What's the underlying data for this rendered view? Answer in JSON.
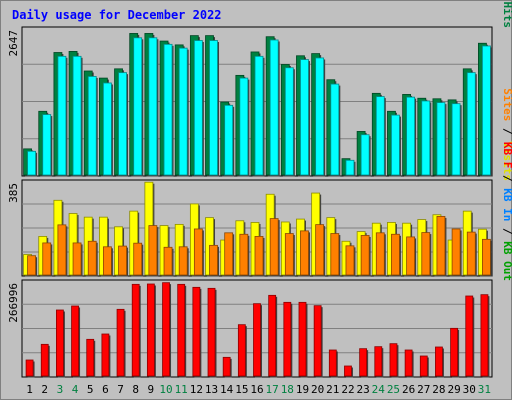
{
  "chart_data": {
    "title": "Daily usage for December 2022",
    "type": "bar",
    "x": [
      "1",
      "2",
      "3",
      "4",
      "5",
      "6",
      "7",
      "8",
      "9",
      "10",
      "11",
      "12",
      "13",
      "14",
      "15",
      "16",
      "17",
      "18",
      "19",
      "20",
      "21",
      "22",
      "23",
      "24",
      "25",
      "26",
      "27",
      "28",
      "29",
      "30",
      "31"
    ],
    "weekend_days": [
      "3",
      "4",
      "10",
      "11",
      "17",
      "18",
      "24",
      "25",
      "31"
    ],
    "panels": [
      {
        "id": "top",
        "ymax_label": "2647",
        "ylim": [
          0,
          2700
        ],
        "legend": [
          "Pages",
          "Files",
          "Hits"
        ],
        "series": [
          {
            "name": "Hits",
            "color": "#008040",
            "values": [
              480,
              1170,
              2250,
              2270,
              1910,
              1780,
              1950,
              2600,
              2600,
              2460,
              2390,
              2560,
              2560,
              1340,
              1830,
              2260,
              2540,
              2030,
              2190,
              2230,
              1750,
              300,
              800,
              1500,
              1170,
              1480,
              1410,
              1400,
              1380,
              1950,
              2420
            ]
          },
          {
            "name": "Files",
            "color": "#00ffff",
            "values": [
              435,
              1110,
              2180,
              2180,
              1810,
              1690,
              1880,
              2520,
              2520,
              2400,
              2330,
              2470,
              2470,
              1280,
              1780,
              2180,
              2480,
              1970,
              2120,
              2150,
              1670,
              270,
              740,
              1440,
              1100,
              1430,
              1360,
              1330,
              1310,
              1880,
              2370
            ]
          },
          {
            "name": "Pages",
            "color": "#00a0ff",
            "values": [
              0,
              0,
              0,
              0,
              0,
              0,
              0,
              0,
              0,
              0,
              0,
              0,
              0,
              0,
              0,
              0,
              0,
              0,
              0,
              0,
              0,
              0,
              0,
              0,
              0,
              0,
              0,
              0,
              0,
              0,
              0
            ]
          }
        ]
      },
      {
        "id": "middle",
        "ymax_label": "385",
        "ylim": [
          0,
          390
        ],
        "legend": [
          "Sites",
          "Visits"
        ],
        "series": [
          {
            "name": "Visits",
            "color": "#ffff00",
            "values": [
              85,
              160,
              310,
              255,
              240,
              240,
              200,
              265,
              385,
              205,
              210,
              295,
              238,
              145,
              225,
              218,
              335,
              220,
              232,
              340,
              238,
              140,
              180,
              215,
              218,
              215,
              230,
              250,
              145,
              265,
              190
            ]
          },
          {
            "name": "Sites",
            "color": "#ff8000",
            "values": [
              80,
              133,
              208,
              133,
              140,
              117,
              120,
              132,
              205,
              115,
              117,
              191,
              123,
              175,
              169,
              160,
              234,
              172,
              183,
              209,
              172,
              121,
              164,
              175,
              169,
              158,
              176,
              243,
              191,
              178,
              148
            ]
          }
        ]
      },
      {
        "id": "bottom",
        "ymax_label": "266996",
        "ylim": [
          0,
          285000
        ],
        "legend": [
          "KB F",
          "KB In",
          "KB Out"
        ],
        "series": [
          {
            "name": "KB F",
            "color": "#ff0000",
            "values": [
              48000,
              95000,
              198000,
              210000,
              110000,
              126000,
              200000,
              275000,
              276000,
              280000,
              275000,
              266000,
              263000,
              56000,
              154000,
              217000,
              242000,
              221000,
              221000,
              211000,
              78000,
              30000,
              82000,
              88000,
              97000,
              78000,
              60000,
              87000,
              143000,
              240000,
              244000
            ]
          }
        ]
      }
    ]
  }
}
